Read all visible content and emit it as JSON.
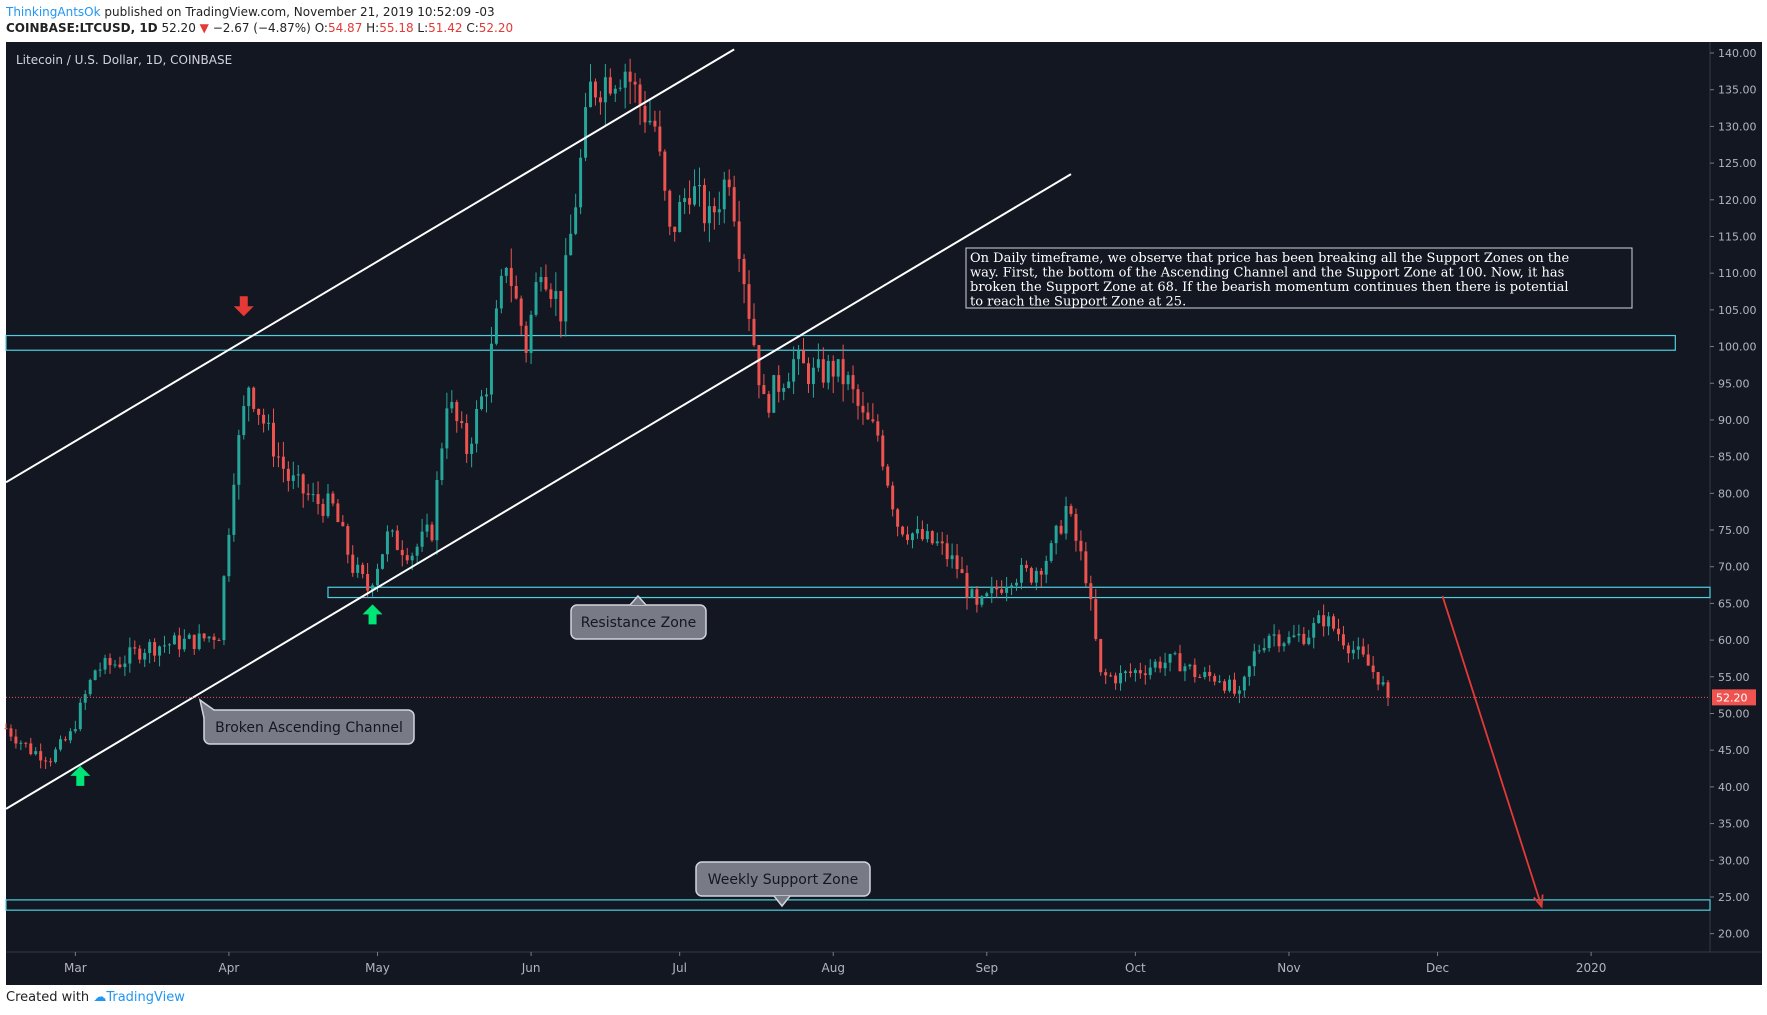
{
  "header": {
    "author": "ThinkingAntsOk",
    "published": "published on TradingView.com, November 21, 2019 10:52:09 -03",
    "symbol": "COINBASE:LTCUSD, 1D",
    "last": "52.20",
    "change": "−2.67 (−4.87%)",
    "o_label": "O:",
    "o": "54.87",
    "h_label": "H:",
    "h": "55.18",
    "l_label": "L:",
    "l": "51.42",
    "c_label": "C:",
    "c": "52.20"
  },
  "footer": {
    "created_with": "Created with",
    "brand": "TradingView"
  },
  "colors": {
    "background": "#131722",
    "bull": "#26a69a",
    "bear": "#ef5350",
    "zone": "#4dd0e1",
    "channel": "#ffffff",
    "arrow_up": "#00e676",
    "arrow_down": "#e53935",
    "forecast": "#e53935",
    "price_tag": "#ef5350"
  },
  "chart_data": {
    "type": "candlestick",
    "title": "Litecoin / U.S. Dollar, 1D, COINBASE",
    "ylim": [
      17.5,
      141.5
    ],
    "xlim": [
      "2019-02-15",
      "2020-01-25"
    ],
    "y_ticks": [
      "20.00",
      "25.00",
      "30.00",
      "35.00",
      "40.00",
      "45.00",
      "50.00",
      "55.00",
      "60.00",
      "65.00",
      "70.00",
      "75.00",
      "80.00",
      "85.00",
      "90.00",
      "95.00",
      "100.00",
      "105.00",
      "110.00",
      "115.00",
      "120.00",
      "125.00",
      "130.00",
      "135.00",
      "140.00"
    ],
    "x_ticks": [
      {
        "label": "Mar",
        "date": "2019-03-01"
      },
      {
        "label": "Apr",
        "date": "2019-04-01"
      },
      {
        "label": "May",
        "date": "2019-05-01"
      },
      {
        "label": "Jun",
        "date": "2019-06-01"
      },
      {
        "label": "Jul",
        "date": "2019-07-01"
      },
      {
        "label": "Aug",
        "date": "2019-08-01"
      },
      {
        "label": "Sep",
        "date": "2019-09-01"
      },
      {
        "label": "Oct",
        "date": "2019-10-01"
      },
      {
        "label": "Nov",
        "date": "2019-11-01"
      },
      {
        "label": "Dec",
        "date": "2019-12-01"
      },
      {
        "label": "2020",
        "date": "2020-01-01"
      }
    ],
    "last_price": "52.20",
    "grid": false,
    "price_path": [
      [
        "2019-02-15",
        48
      ],
      [
        "2019-02-20",
        45
      ],
      [
        "2019-02-24",
        44
      ],
      [
        "2019-02-28",
        47
      ],
      [
        "2019-03-05",
        56
      ],
      [
        "2019-03-10",
        57
      ],
      [
        "2019-03-15",
        59
      ],
      [
        "2019-03-20",
        59.5
      ],
      [
        "2019-03-26",
        60
      ],
      [
        "2019-03-30",
        61
      ],
      [
        "2019-04-02",
        83
      ],
      [
        "2019-04-05",
        95
      ],
      [
        "2019-04-09",
        88
      ],
      [
        "2019-04-13",
        82
      ],
      [
        "2019-04-18",
        79
      ],
      [
        "2019-04-22",
        78
      ],
      [
        "2019-04-26",
        70
      ],
      [
        "2019-04-29",
        67
      ],
      [
        "2019-05-03",
        74
      ],
      [
        "2019-05-08",
        72
      ],
      [
        "2019-05-12",
        75
      ],
      [
        "2019-05-15",
        93
      ],
      [
        "2019-05-19",
        86
      ],
      [
        "2019-05-23",
        95
      ],
      [
        "2019-05-27",
        112
      ],
      [
        "2019-05-31",
        100
      ],
      [
        "2019-06-03",
        112
      ],
      [
        "2019-06-07",
        105
      ],
      [
        "2019-06-10",
        120
      ],
      [
        "2019-06-13",
        135
      ],
      [
        "2019-06-17",
        137
      ],
      [
        "2019-06-20",
        138
      ],
      [
        "2019-06-23",
        133
      ],
      [
        "2019-06-26",
        130
      ],
      [
        "2019-06-29",
        115
      ],
      [
        "2019-07-03",
        122
      ],
      [
        "2019-07-07",
        117
      ],
      [
        "2019-07-11",
        124
      ],
      [
        "2019-07-15",
        105
      ],
      [
        "2019-07-18",
        92
      ],
      [
        "2019-07-21",
        95
      ],
      [
        "2019-07-24",
        98
      ],
      [
        "2019-07-28",
        96
      ],
      [
        "2019-08-01",
        97
      ],
      [
        "2019-08-04",
        95
      ],
      [
        "2019-08-07",
        90
      ],
      [
        "2019-08-10",
        88
      ],
      [
        "2019-08-14",
        76
      ],
      [
        "2019-08-18",
        74
      ],
      [
        "2019-08-22",
        73
      ],
      [
        "2019-08-26",
        70
      ],
      [
        "2019-08-30",
        64
      ],
      [
        "2019-09-03",
        67
      ],
      [
        "2019-09-06",
        69
      ],
      [
        "2019-09-10",
        69
      ],
      [
        "2019-09-14",
        72
      ],
      [
        "2019-09-17",
        78
      ],
      [
        "2019-09-21",
        69
      ],
      [
        "2019-09-24",
        55
      ],
      [
        "2019-09-28",
        55
      ],
      [
        "2019-10-02",
        56
      ],
      [
        "2019-10-06",
        57
      ],
      [
        "2019-10-10",
        57
      ],
      [
        "2019-10-14",
        55
      ],
      [
        "2019-10-18",
        55
      ],
      [
        "2019-10-22",
        52
      ],
      [
        "2019-10-25",
        58
      ],
      [
        "2019-10-28",
        61
      ],
      [
        "2019-11-01",
        60
      ],
      [
        "2019-11-05",
        61
      ],
      [
        "2019-11-08",
        63
      ],
      [
        "2019-11-11",
        61
      ],
      [
        "2019-11-15",
        58
      ],
      [
        "2019-11-19",
        55
      ],
      [
        "2019-11-21",
        52.2
      ]
    ],
    "channel_lines": [
      {
        "from": [
          "2019-02-15",
          81.5
        ],
        "to": [
          "2019-07-12",
          140.5
        ]
      },
      {
        "from": [
          "2019-02-15",
          37
        ],
        "to": [
          "2019-09-18",
          123.5
        ]
      }
    ],
    "zones": [
      {
        "from": "2019-02-15",
        "to": "2020-01-18",
        "low": 99.5,
        "high": 101.5
      },
      {
        "from": "2019-04-21",
        "to": "2020-01-25",
        "low": 65.8,
        "high": 67.2
      },
      {
        "from": "2019-02-15",
        "to": "2020-01-25",
        "low": 23.2,
        "high": 24.6
      }
    ],
    "markers": [
      {
        "type": "arrow-down",
        "date": "2019-04-04",
        "y": 105.5
      },
      {
        "type": "arrow-up",
        "date": "2019-04-30",
        "y": 63.5
      },
      {
        "type": "arrow-up",
        "date": "2019-03-02",
        "y": 41.5
      }
    ],
    "forecast_arrow": {
      "from": [
        "2019-12-02",
        66
      ],
      "to": [
        "2019-12-22",
        23.7
      ]
    },
    "annotations": [
      {
        "id": "note",
        "text": "On Daily timeframe, we observe that price has been breaking all the Support Zones on the way. First, the bottom of the Ascending Channel and the Support Zone at 100. Now, it has broken the Support Zone at 68. If the bearish momentum continues then there is potential to reach the Support Zone at 25."
      },
      {
        "id": "resistance",
        "text": "Resistance Zone"
      },
      {
        "id": "broken",
        "text": "Broken Ascending Channel"
      },
      {
        "id": "weekly",
        "text": "Weekly Support Zone"
      }
    ]
  }
}
